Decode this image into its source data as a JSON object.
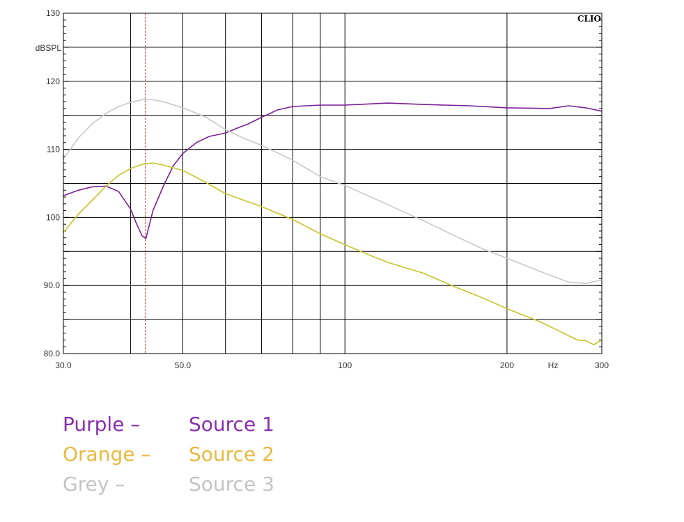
{
  "chart_data": {
    "type": "line",
    "brand": "CLIO",
    "ylabel": "dBSPL",
    "xlabel": "Hz",
    "x_scale": "log",
    "xlim": [
      30,
      300
    ],
    "ylim": [
      80,
      130
    ],
    "x_ticks": [
      {
        "value": 30,
        "label": "30.0"
      },
      {
        "value": 50,
        "label": "50.0"
      },
      {
        "value": 100,
        "label": "100"
      },
      {
        "value": 200,
        "label": "200"
      },
      {
        "value": 300,
        "label": "300"
      }
    ],
    "y_ticks": [
      {
        "value": 80,
        "label": "80.0"
      },
      {
        "value": 90,
        "label": "90.0"
      },
      {
        "value": 100,
        "label": "100"
      },
      {
        "value": 110,
        "label": "110"
      },
      {
        "value": 120,
        "label": "120"
      },
      {
        "value": 130,
        "label": "130"
      }
    ],
    "grid": true,
    "marker_line": {
      "x": 42.6,
      "style": "dashed",
      "color": "#e03030"
    },
    "series": [
      {
        "color": "#7a1e96",
        "x": [
          30,
          32,
          34,
          36,
          38,
          40,
          41,
          42,
          42.7,
          44,
          46,
          48,
          50,
          53,
          56,
          60,
          63,
          66,
          70,
          75,
          80,
          90,
          100,
          120,
          140,
          170,
          200,
          240,
          260,
          280,
          300
        ],
        "y": [
          103.2,
          104.0,
          104.5,
          104.6,
          103.8,
          101.2,
          99.1,
          97.3,
          96.9,
          101.0,
          104.6,
          107.6,
          109.4,
          111.0,
          111.9,
          112.4,
          113.1,
          113.7,
          114.7,
          115.8,
          116.3,
          116.5,
          116.5,
          116.8,
          116.6,
          116.4,
          116.1,
          116.0,
          116.4,
          116.1,
          115.6
        ]
      },
      {
        "color": "#c6c427",
        "x": [
          30,
          32,
          34,
          36,
          38,
          40,
          42,
          44,
          46,
          50,
          55,
          60,
          65,
          70,
          80,
          90,
          100,
          110,
          120,
          140,
          160,
          180,
          200,
          230,
          250,
          270,
          280,
          290,
          300
        ],
        "y": [
          97.8,
          100.5,
          102.6,
          104.6,
          106.2,
          107.2,
          107.8,
          108.0,
          107.7,
          106.9,
          105.2,
          103.5,
          102.5,
          101.6,
          99.7,
          97.6,
          96.0,
          94.6,
          93.4,
          91.8,
          89.8,
          88.2,
          86.6,
          84.7,
          83.3,
          82.0,
          81.9,
          81.3,
          82.0
        ]
      },
      {
        "color": "#c8c8c8",
        "x": [
          30,
          32,
          34,
          36,
          38,
          40,
          42,
          44,
          46,
          50,
          55,
          60,
          65,
          70,
          80,
          90,
          100,
          120,
          140,
          160,
          180,
          200,
          230,
          260,
          280,
          300
        ],
        "y": [
          108.6,
          111.7,
          113.8,
          115.3,
          116.3,
          116.9,
          117.3,
          117.3,
          117.0,
          116.1,
          114.8,
          112.9,
          111.6,
          110.6,
          108.4,
          106.0,
          104.7,
          101.9,
          99.5,
          97.3,
          95.4,
          94.0,
          92.1,
          90.5,
          90.3,
          90.8
        ]
      }
    ]
  },
  "legend": [
    {
      "color_label": "Purple –",
      "source_label": "Source 1",
      "color": "#8a2eb0"
    },
    {
      "color_label": "Orange –",
      "source_label": "Source 2",
      "color": "#e8b93e"
    },
    {
      "color_label": "Grey –",
      "source_label": "Source 3",
      "color": "#c4c4c4"
    }
  ]
}
